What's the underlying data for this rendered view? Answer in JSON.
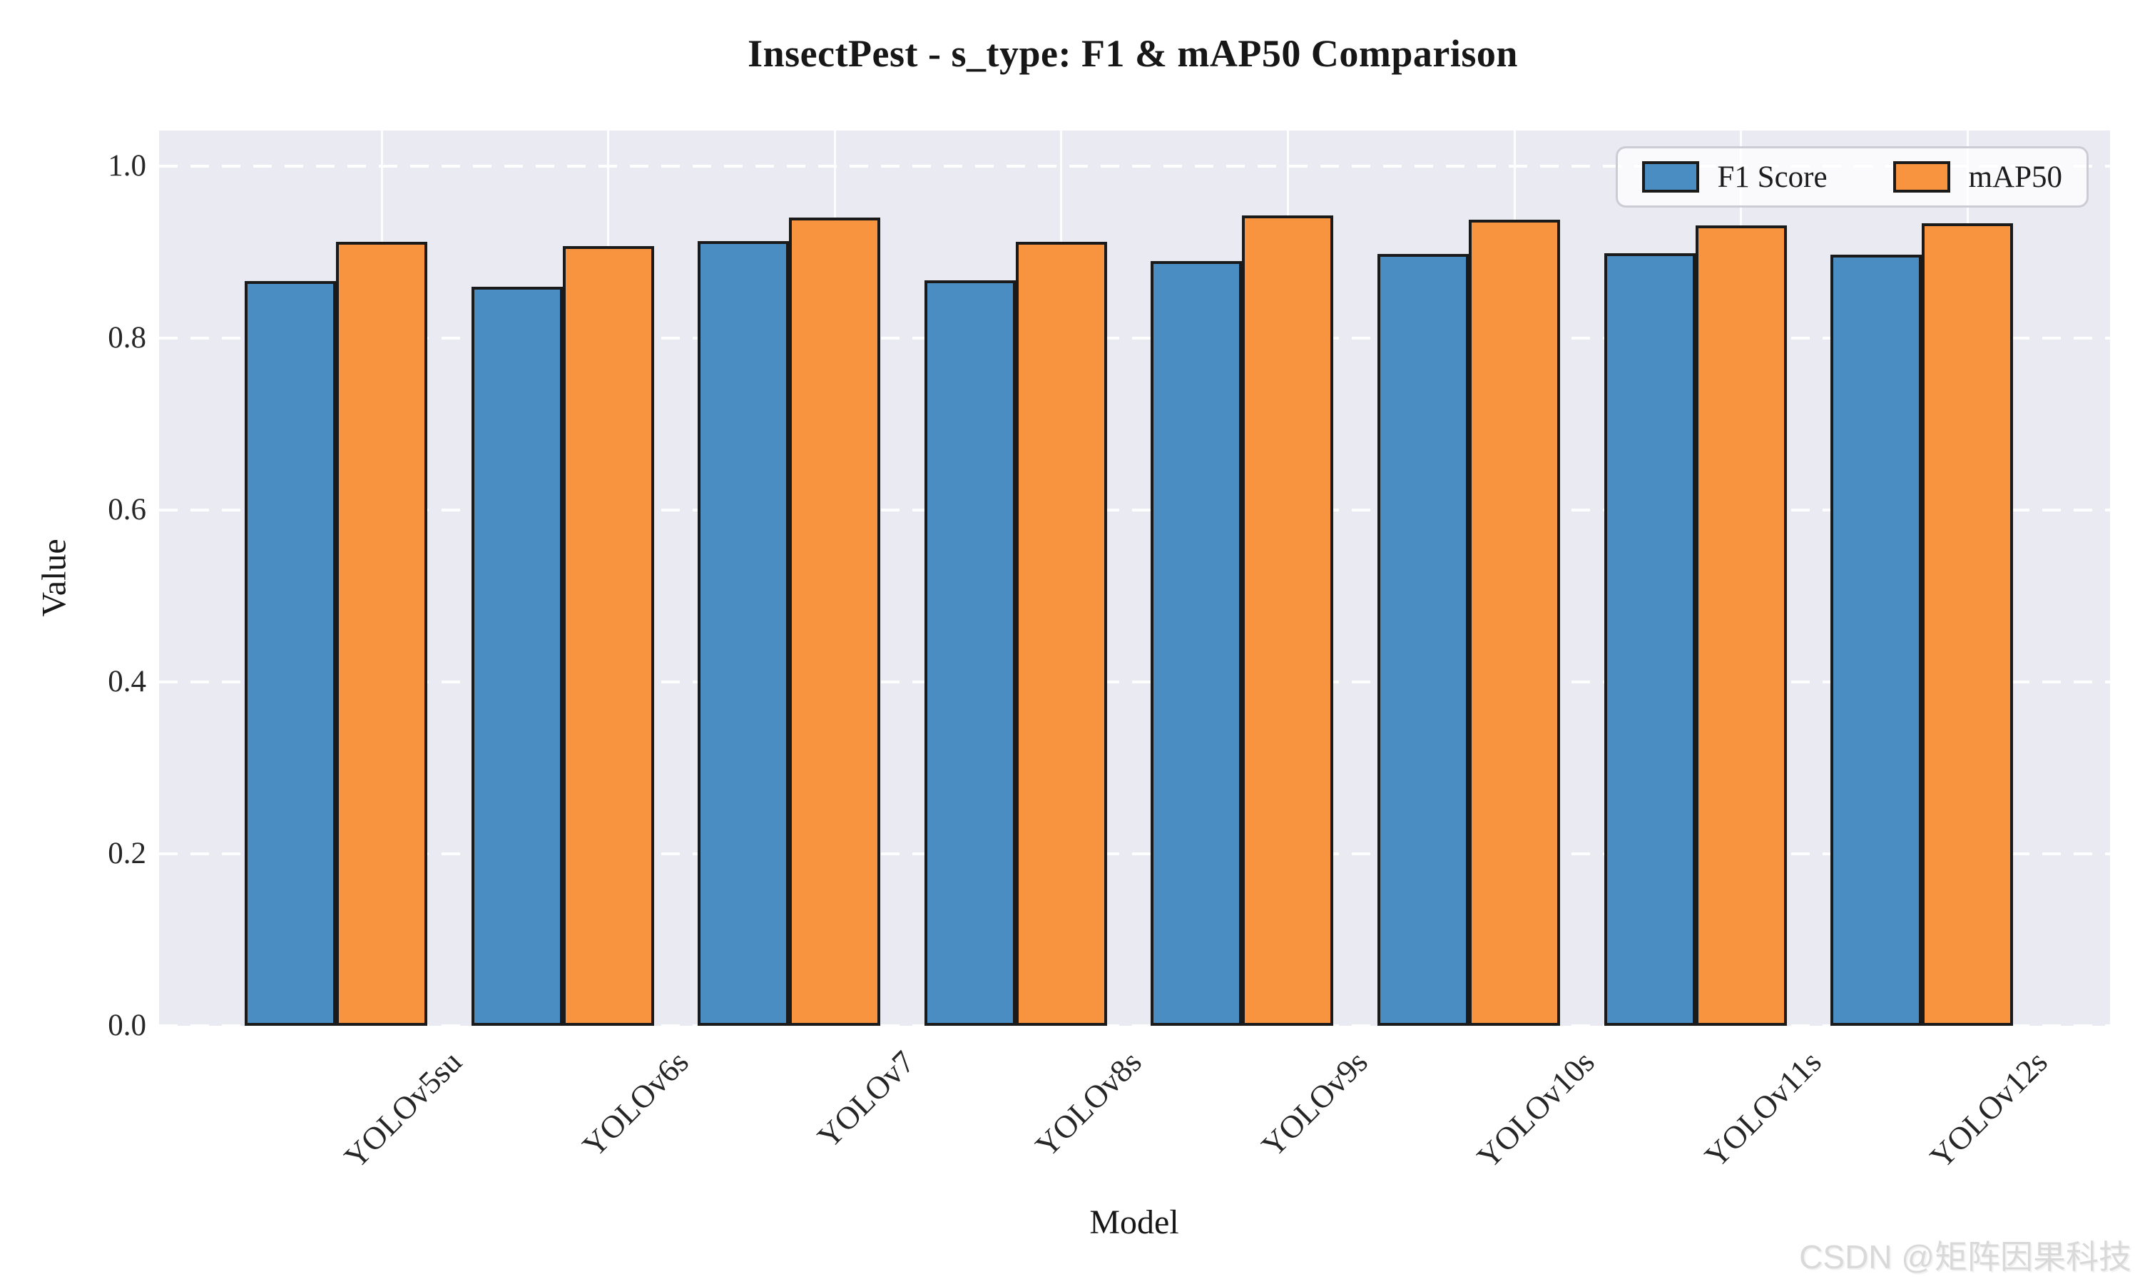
{
  "watermark": {
    "text": "CSDN @矩阵因果科技"
  },
  "colors": {
    "plot_background": "#eaeaf2",
    "grid": "#ffffff",
    "bar_edge": "#1a1a1a",
    "f1_blue": "#4a8dc2",
    "map50_orange": "#f8943f",
    "text": "#262626"
  },
  "chart_data": {
    "type": "bar",
    "title": "InsectPest - s_type: F1 & mAP50 Comparison",
    "xlabel": "Model",
    "ylabel": "Value",
    "categories": [
      "YOLOv5su",
      "YOLOv6s",
      "YOLOv7",
      "YOLOv8s",
      "YOLOv9s",
      "YOLOv10s",
      "YOLOv11s",
      "YOLOv12s"
    ],
    "series": [
      {
        "name": "F1 Score",
        "color": "#4a8dc2",
        "values": [
          0.866,
          0.86,
          0.913,
          0.867,
          0.89,
          0.898,
          0.899,
          0.897
        ]
      },
      {
        "name": "mAP50",
        "color": "#f8943f",
        "values": [
          0.912,
          0.907,
          0.94,
          0.912,
          0.943,
          0.938,
          0.931,
          0.934
        ]
      }
    ],
    "ylim": [
      0,
      1.0415
    ],
    "yticks": {
      "values": [
        0.0,
        0.2,
        0.4,
        0.6,
        0.8,
        1.0
      ],
      "labels": [
        "0.0",
        "0.2",
        "0.4",
        "0.6",
        "0.8",
        "1.0"
      ]
    },
    "grid": "both",
    "grid_style": "horizontal-dashed, vertical-solid",
    "legend_position": "upper right",
    "xtick_rotation": 45
  }
}
